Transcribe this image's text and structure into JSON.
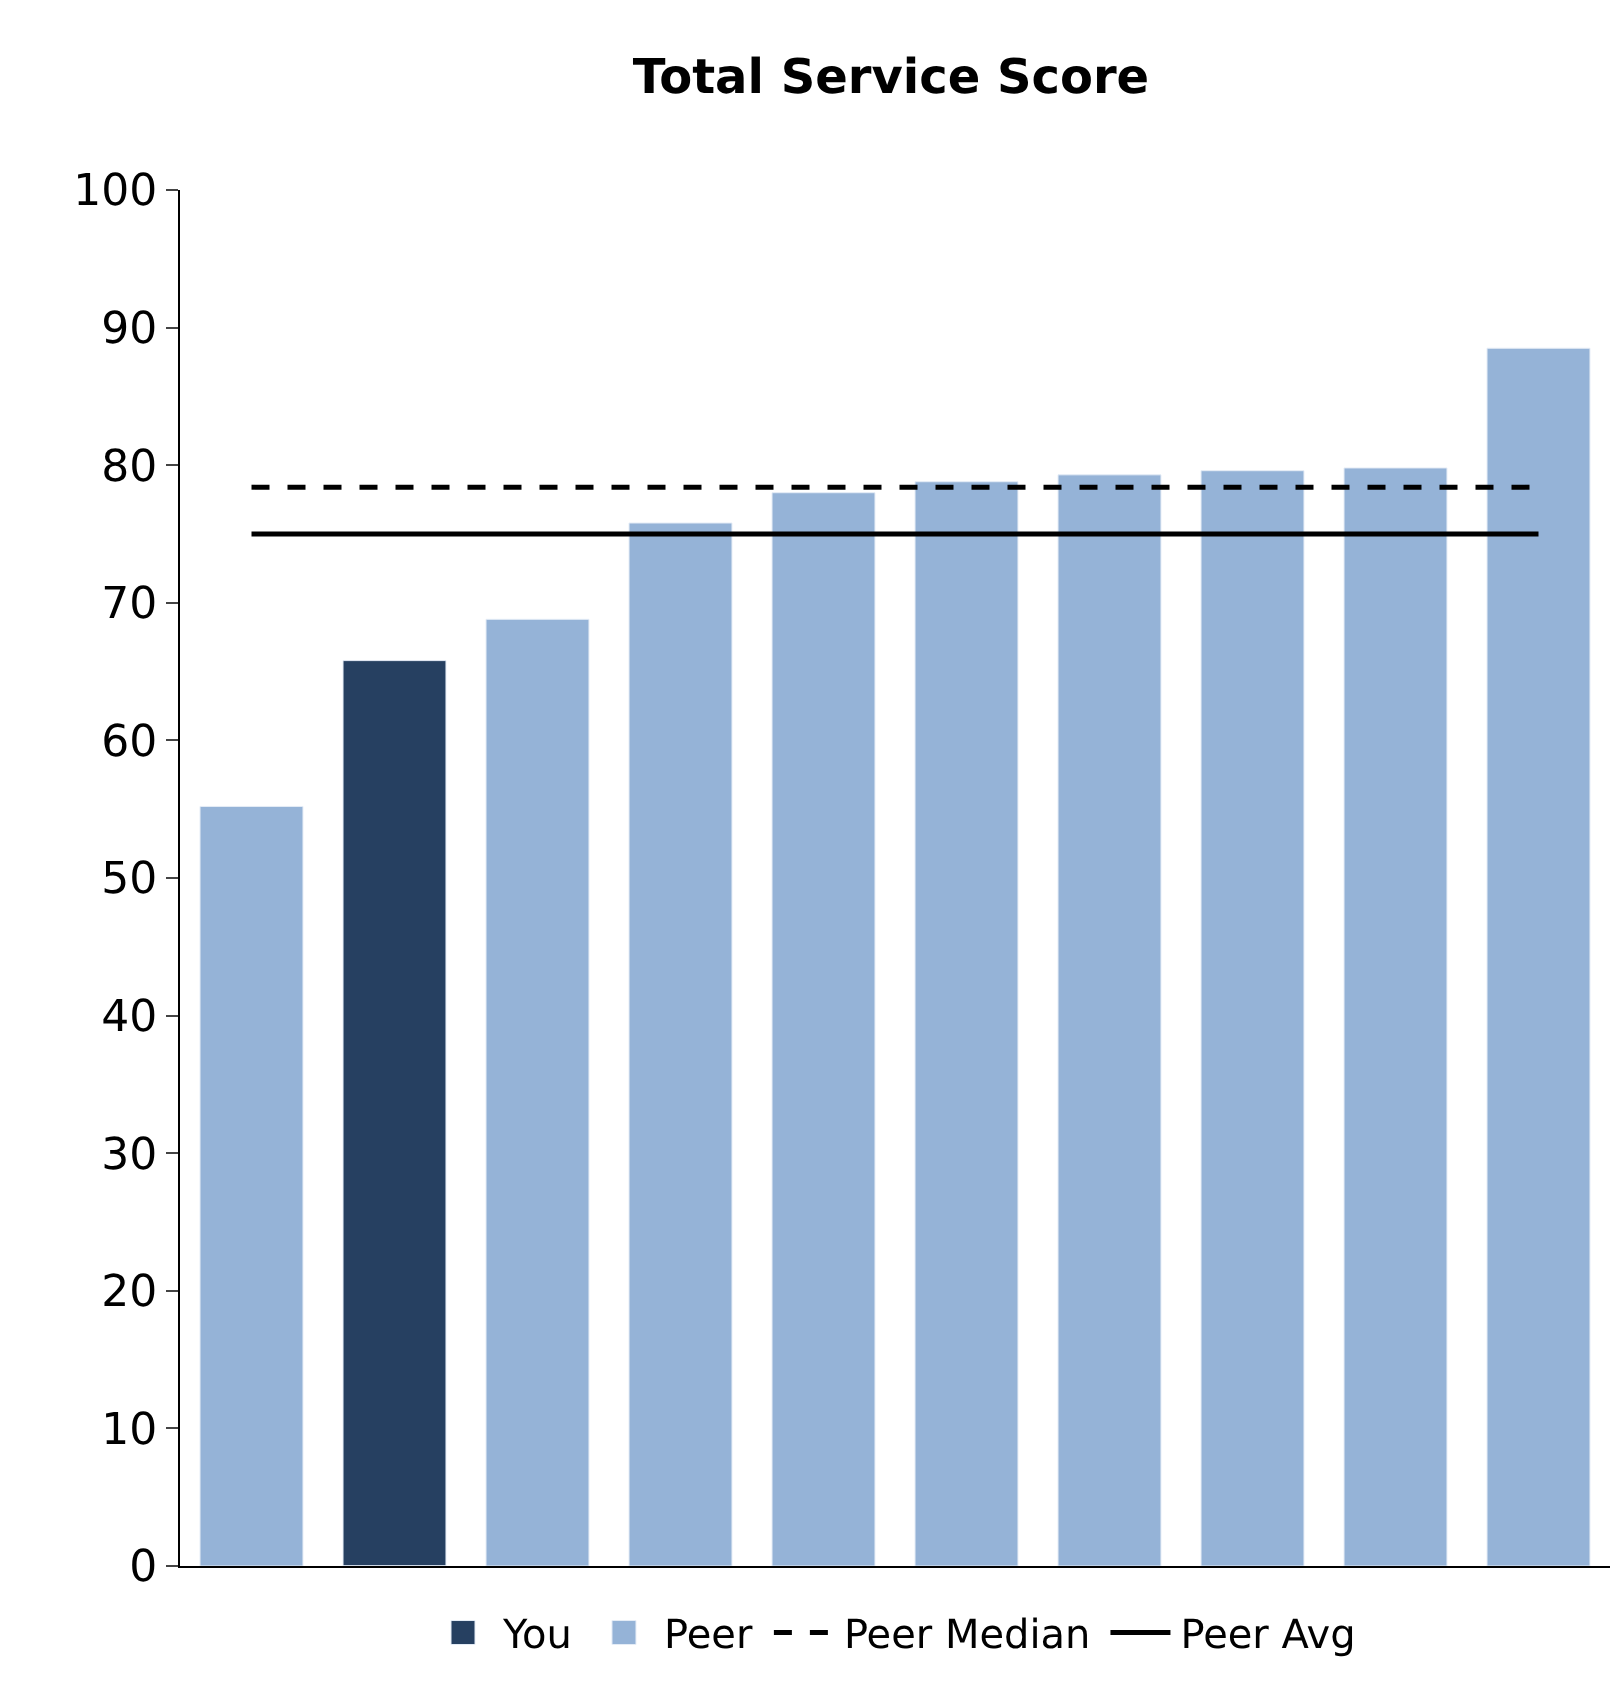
{
  "chart_data": {
    "type": "bar",
    "title": "Total Service Score",
    "categories": [
      null,
      null,
      null,
      null,
      null,
      null,
      null,
      null,
      null,
      null
    ],
    "series": [
      {
        "name": "You",
        "color": "#264061",
        "values": [
          null,
          65.8,
          null,
          null,
          null,
          null,
          null,
          null,
          null,
          null
        ]
      },
      {
        "name": "Peer",
        "color": "#95b3d7",
        "values": [
          55.2,
          null,
          68.8,
          75.8,
          78.0,
          78.8,
          79.3,
          79.6,
          79.8,
          88.5
        ]
      }
    ],
    "ref_lines": [
      {
        "axis": "y",
        "value": 78.4,
        "label": "Peer Median",
        "color": "#000000",
        "line_style": "dashed"
      },
      {
        "axis": "y",
        "value": 75.0,
        "label": "Peer Avg",
        "color": "#000000",
        "line_style": "solid"
      }
    ],
    "ylim": [
      0,
      100
    ],
    "yticks": [
      0,
      10,
      20,
      30,
      40,
      50,
      60,
      70,
      80,
      90,
      100
    ],
    "legend": "bottom",
    "tick_labels": "y"
  }
}
